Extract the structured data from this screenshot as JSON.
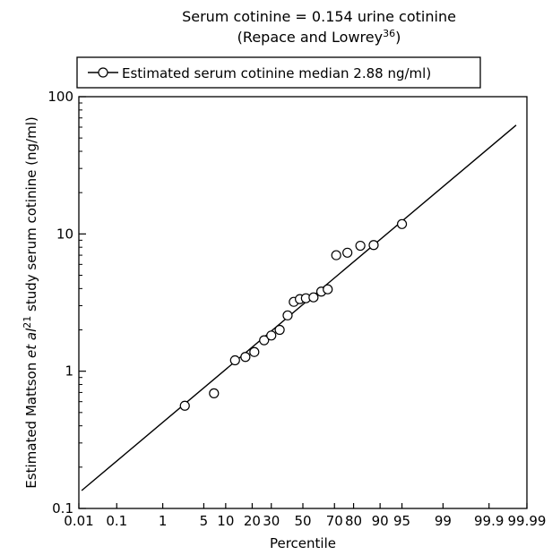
{
  "chart_data": {
    "type": "scatter",
    "title_line1": "Serum cotinine = 0.154 urine cotinine",
    "title_line2_main": "(Repace and Lowrey",
    "title_line2_sup": "36",
    "title_line2_end": ")",
    "xlabel": "Percentile",
    "ylabel_part1": "Estimated Mattson ",
    "ylabel_italic": "et al",
    "ylabel_sup": "21",
    "ylabel_part2": " study serum cotinine (ng/ml)",
    "x_scale": "probability",
    "y_scale": "log",
    "xlim": [
      0.01,
      99.99
    ],
    "ylim": [
      0.1,
      100
    ],
    "x_ticks": [
      0.01,
      0.1,
      1,
      5,
      10,
      20,
      30,
      50,
      70,
      80,
      90,
      95,
      99,
      99.9,
      99.99
    ],
    "x_tick_labels": [
      "0.01",
      "0.1",
      "1",
      "5",
      "10",
      "20",
      "30",
      "50",
      "70",
      "80",
      "90",
      "95",
      "99",
      "99.9",
      "99.99"
    ],
    "y_ticks": [
      0.1,
      1,
      10,
      100
    ],
    "y_tick_labels": [
      "0.1",
      "1",
      "10",
      "100"
    ],
    "legend": {
      "position": "top-left",
      "label": "Estimated serum cotinine median 2.88 ng/ml)"
    },
    "series": [
      {
        "marker": "open-circle",
        "points": [
          {
            "x": 2.5,
            "y": 0.56
          },
          {
            "x": 7,
            "y": 0.69
          },
          {
            "x": 13,
            "y": 1.2
          },
          {
            "x": 17,
            "y": 1.27
          },
          {
            "x": 21,
            "y": 1.38
          },
          {
            "x": 26,
            "y": 1.68
          },
          {
            "x": 30,
            "y": 1.82
          },
          {
            "x": 35,
            "y": 2.0
          },
          {
            "x": 40,
            "y": 2.55
          },
          {
            "x": 44,
            "y": 3.2
          },
          {
            "x": 48,
            "y": 3.35
          },
          {
            "x": 52,
            "y": 3.4
          },
          {
            "x": 57,
            "y": 3.45
          },
          {
            "x": 62,
            "y": 3.8
          },
          {
            "x": 66,
            "y": 3.95
          },
          {
            "x": 71,
            "y": 7.0
          },
          {
            "x": 77,
            "y": 7.3
          },
          {
            "x": 83,
            "y": 8.2
          },
          {
            "x": 88,
            "y": 8.3
          },
          {
            "x": 95,
            "y": 11.8
          }
        ]
      }
    ],
    "fit_line": {
      "points": [
        {
          "x": 0.012,
          "y": 0.135
        },
        {
          "x": 99.98,
          "y": 62
        }
      ]
    }
  }
}
